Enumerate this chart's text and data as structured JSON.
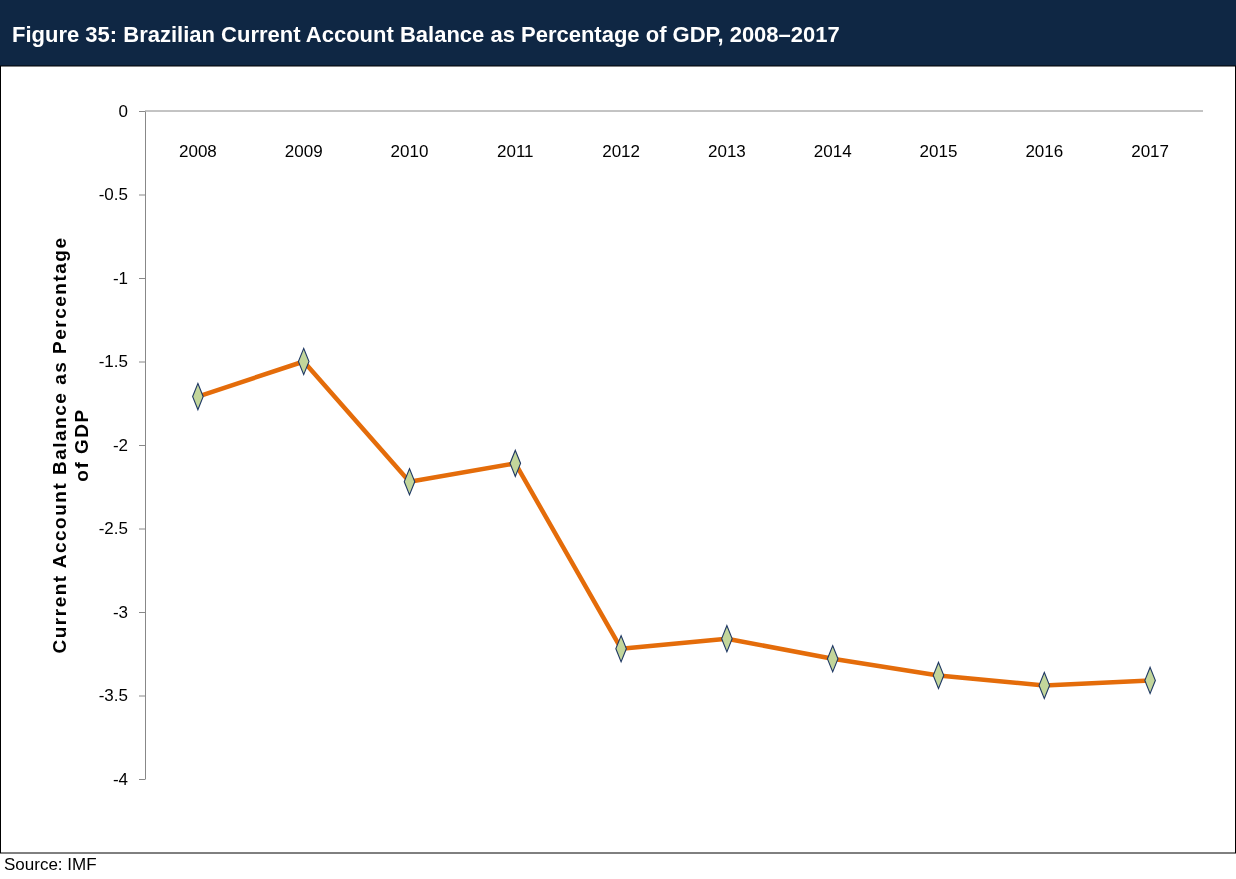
{
  "chart_data": {
    "type": "line",
    "title": "Figure 35: Brazilian Current Account Balance as Percentage of GDP, 2008–2017",
    "ylabel": "Current Account Balance as Percentage of GDP",
    "annotations": [
      "Source: IMF"
    ],
    "categories": [
      "2008",
      "2009",
      "2010",
      "2011",
      "2012",
      "2013",
      "2014",
      "2015",
      "2016",
      "2017"
    ],
    "series": [
      {
        "color": "#e46c0a",
        "values": [
          -1.71,
          -1.5,
          -2.22,
          -2.11,
          -3.22,
          -3.16,
          -3.28,
          -3.38,
          -3.44,
          -3.41
        ]
      }
    ],
    "ylim": [
      -4,
      0
    ],
    "yticks": [
      0,
      {
        "value": -0.5,
        "label": "-0.5"
      },
      {
        "value": -1,
        "label": "-1"
      },
      {
        "value": -1.5,
        "label": "-1.5"
      },
      {
        "value": -2,
        "label": "-2"
      },
      {
        "value": -2.5,
        "label": "-2.5"
      },
      {
        "value": -3,
        "label": "-3"
      },
      {
        "value": -3.5,
        "label": "-3.5"
      },
      {
        "value": -4,
        "label": "-4"
      }
    ],
    "grid": false,
    "marker": "diamond",
    "line_style": "solid"
  }
}
